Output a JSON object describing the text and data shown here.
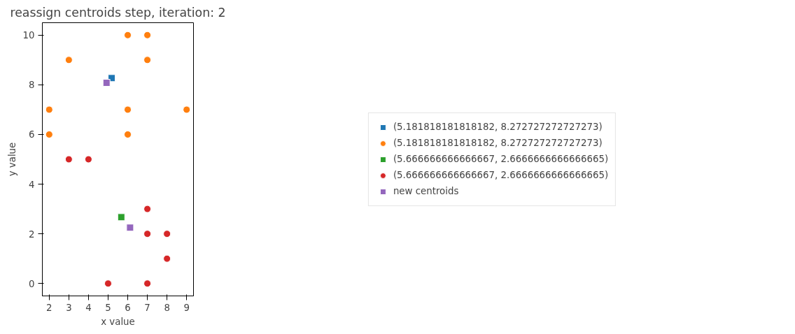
{
  "chart_data": {
    "type": "scatter",
    "title": "reassign centroids step, iteration: 2",
    "xlabel": "x value",
    "ylabel": "y value",
    "xlim": [
      1.65,
      9.35
    ],
    "ylim": [
      -0.5,
      10.5
    ],
    "xticks": [
      2,
      3,
      4,
      5,
      6,
      7,
      8,
      9
    ],
    "yticks": [
      0,
      2,
      4,
      6,
      8,
      10
    ],
    "grid": false,
    "legend": "right",
    "series": [
      {
        "name": "(5.181818181818182, 8.272727272727273)",
        "color": "#1f77b4",
        "marker": "square",
        "x": [
          5.18
        ],
        "values": [
          8.27
        ]
      },
      {
        "name": "(5.181818181818182, 8.272727272727273)",
        "color": "#ff7f0e",
        "marker": "circle",
        "x": [
          2,
          2,
          3,
          6,
          7,
          7,
          6,
          6,
          9
        ],
        "values": [
          7,
          6,
          9,
          10,
          10,
          9,
          7,
          6,
          7
        ]
      },
      {
        "name": "(5.666666666666667, 2.6666666666666665)",
        "color": "#2ca02c",
        "marker": "square",
        "x": [
          5.67
        ],
        "values": [
          2.67
        ]
      },
      {
        "name": "(5.666666666666667, 2.6666666666666665)",
        "color": "#d62728",
        "marker": "circle",
        "x": [
          3,
          4,
          7,
          7,
          8,
          8,
          5,
          7
        ],
        "values": [
          5,
          5,
          3,
          2,
          2,
          1,
          0,
          0
        ]
      },
      {
        "name": "new centroids",
        "color": "#9467bd",
        "marker": "square",
        "x": [
          4.92,
          6.12
        ],
        "values": [
          8.08,
          2.25
        ]
      }
    ]
  }
}
